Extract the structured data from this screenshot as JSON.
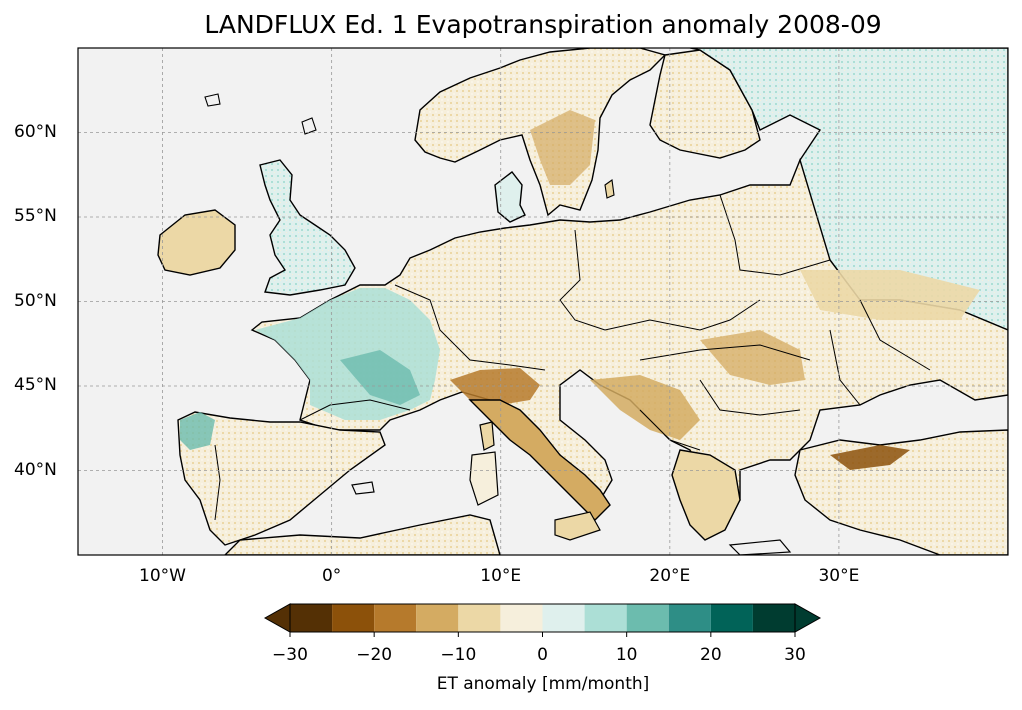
{
  "title": "LANDFLUX Ed. 1 Evapotranspiration anomaly 2008-09",
  "map": {
    "lon_range": [
      -15,
      40
    ],
    "lat_range": [
      35,
      65
    ],
    "lon_ticks": [
      {
        "value": -10,
        "label": "10°W"
      },
      {
        "value": 0,
        "label": "0°"
      },
      {
        "value": 10,
        "label": "10°E"
      },
      {
        "value": 20,
        "label": "20°E"
      },
      {
        "value": 30,
        "label": "30°E"
      }
    ],
    "lat_ticks": [
      {
        "value": 60,
        "label": "60°N"
      },
      {
        "value": 55,
        "label": "55°N"
      },
      {
        "value": 50,
        "label": "50°N"
      },
      {
        "value": 45,
        "label": "45°N"
      },
      {
        "value": 40,
        "label": "40°N"
      }
    ],
    "gridlines": true,
    "ocean_color": "#f2f2f2",
    "coastline_color": "#000000"
  },
  "colorbar": {
    "label": "ET anomaly [mm/month]",
    "range": [
      -30,
      30
    ],
    "extend": "both",
    "ticks": [
      {
        "value": -30,
        "label": "−30"
      },
      {
        "value": -20,
        "label": "−20"
      },
      {
        "value": -10,
        "label": "−10"
      },
      {
        "value": 0,
        "label": "0"
      },
      {
        "value": 10,
        "label": "10"
      },
      {
        "value": 20,
        "label": "20"
      },
      {
        "value": 30,
        "label": "30"
      }
    ],
    "bins": [
      {
        "from": -35,
        "to": -30,
        "color": "#543005"
      },
      {
        "from": -30,
        "to": -25,
        "color": "#543005"
      },
      {
        "from": -25,
        "to": -20,
        "color": "#8c510a"
      },
      {
        "from": -20,
        "to": -15,
        "color": "#b67a2c"
      },
      {
        "from": -15,
        "to": -10,
        "color": "#d4ab62"
      },
      {
        "from": -10,
        "to": -5,
        "color": "#ecd8a6"
      },
      {
        "from": -5,
        "to": 0,
        "color": "#f6efdc"
      },
      {
        "from": 0,
        "to": 5,
        "color": "#dff0ed"
      },
      {
        "from": 5,
        "to": 10,
        "color": "#acdfd6"
      },
      {
        "from": 10,
        "to": 15,
        "color": "#6cbcae"
      },
      {
        "from": 15,
        "to": 20,
        "color": "#2e8e86"
      },
      {
        "from": 20,
        "to": 25,
        "color": "#016358"
      },
      {
        "from": 25,
        "to": 30,
        "color": "#003c30"
      },
      {
        "from": 30,
        "to": 35,
        "color": "#003c30"
      }
    ]
  }
}
